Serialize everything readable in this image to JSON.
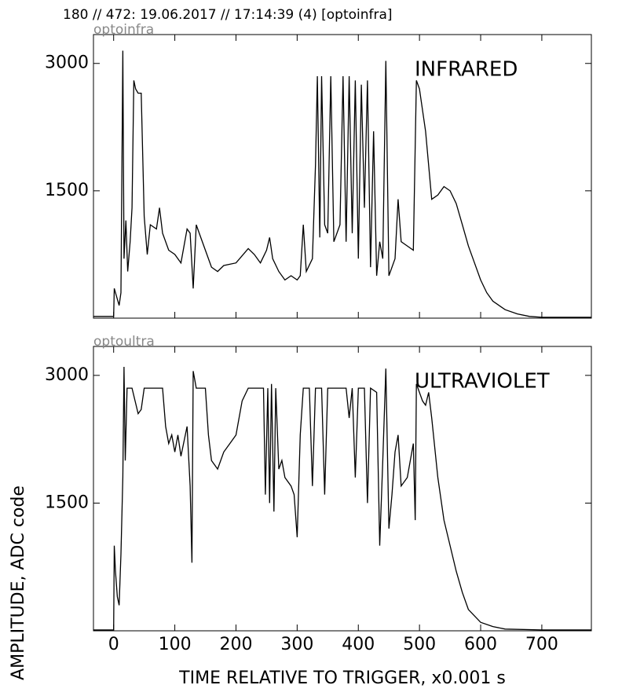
{
  "title": "180 // 472:   19.06.2017 // 17:14:39 (4)  [optoinfra]",
  "xlabel": "TIME RELATIVE TO TRIGGER,   x0.001 s",
  "ylabel": "AMPLITUDE,  ADC code",
  "chart_data": [
    {
      "type": "line",
      "source": "optoinfra",
      "label": "INFRARED",
      "color": "#000000",
      "xlim": [
        -33,
        781
      ],
      "ylim": [
        0,
        3340
      ],
      "xticks": [
        0,
        100,
        200,
        300,
        400,
        500,
        600,
        700
      ],
      "yticks": [
        1500,
        3000
      ],
      "x": [
        -33,
        0,
        1,
        5,
        9,
        12,
        15,
        17,
        20,
        23,
        27,
        30,
        33,
        36,
        40,
        45,
        50,
        55,
        60,
        70,
        75,
        80,
        90,
        100,
        110,
        120,
        125,
        130,
        135,
        140,
        150,
        160,
        170,
        180,
        200,
        220,
        230,
        240,
        250,
        255,
        260,
        270,
        280,
        290,
        300,
        305,
        310,
        315,
        325,
        330,
        333,
        337,
        340,
        345,
        350,
        355,
        360,
        370,
        375,
        380,
        385,
        390,
        395,
        400,
        405,
        410,
        415,
        420,
        425,
        430,
        435,
        440,
        445,
        450,
        460,
        465,
        470,
        480,
        490,
        495,
        500,
        510,
        520,
        530,
        540,
        550,
        560,
        570,
        580,
        590,
        600,
        610,
        620,
        640,
        660,
        680,
        700,
        740,
        781
      ],
      "values": [
        20,
        20,
        350,
        250,
        150,
        300,
        3150,
        700,
        1150,
        550,
        900,
        1300,
        2800,
        2700,
        2650,
        2650,
        1200,
        750,
        1100,
        1050,
        1300,
        1000,
        800,
        750,
        650,
        1050,
        1000,
        350,
        1100,
        1000,
        800,
        600,
        550,
        620,
        650,
        820,
        750,
        650,
        800,
        950,
        700,
        550,
        450,
        500,
        450,
        500,
        1100,
        550,
        700,
        1800,
        2850,
        950,
        2850,
        1100,
        1000,
        2850,
        900,
        1100,
        2850,
        900,
        2850,
        1000,
        2800,
        700,
        2750,
        1300,
        2800,
        600,
        2200,
        500,
        900,
        700,
        3030,
        500,
        700,
        1400,
        900,
        850,
        800,
        2800,
        2700,
        2200,
        1400,
        1450,
        1550,
        1500,
        1350,
        1100,
        850,
        650,
        450,
        300,
        200,
        100,
        50,
        20,
        10,
        10,
        10
      ]
    },
    {
      "type": "line",
      "source": "optoultra",
      "label": "ULTRAVIOLET",
      "color": "#000000",
      "xlim": [
        -33,
        781
      ],
      "ylim": [
        0,
        3340
      ],
      "xticks": [
        0,
        100,
        200,
        300,
        400,
        500,
        600,
        700
      ],
      "yticks": [
        1500,
        3000
      ],
      "x": [
        -33,
        0,
        1,
        3,
        6,
        9,
        12,
        15,
        17,
        19,
        22,
        30,
        35,
        40,
        45,
        50,
        80,
        85,
        90,
        95,
        100,
        105,
        110,
        120,
        125,
        128,
        130,
        135,
        150,
        155,
        160,
        170,
        180,
        190,
        200,
        210,
        220,
        230,
        245,
        248,
        252,
        255,
        258,
        262,
        265,
        270,
        275,
        280,
        290,
        295,
        300,
        305,
        310,
        320,
        325,
        330,
        340,
        345,
        350,
        380,
        385,
        390,
        395,
        400,
        410,
        415,
        420,
        430,
        435,
        440,
        445,
        450,
        455,
        460,
        465,
        470,
        480,
        490,
        493,
        495,
        505,
        510,
        515,
        520,
        530,
        540,
        550,
        560,
        570,
        580,
        600,
        620,
        640,
        700,
        781
      ],
      "values": [
        10,
        10,
        1000,
        700,
        400,
        300,
        900,
        1800,
        3100,
        2000,
        2850,
        2850,
        2700,
        2550,
        2600,
        2850,
        2850,
        2400,
        2200,
        2300,
        2100,
        2300,
        2050,
        2400,
        1700,
        800,
        3050,
        2850,
        2850,
        2300,
        2000,
        1900,
        2100,
        2200,
        2300,
        2700,
        2850,
        2850,
        2850,
        1600,
        2850,
        1500,
        2900,
        1400,
        2850,
        1900,
        2000,
        1800,
        1700,
        1600,
        1100,
        2300,
        2850,
        2850,
        1700,
        2850,
        2850,
        1600,
        2850,
        2850,
        2500,
        2850,
        1800,
        2850,
        2850,
        1500,
        2850,
        2800,
        1000,
        2000,
        3080,
        1200,
        1600,
        2100,
        2300,
        1700,
        1800,
        2200,
        1300,
        2900,
        2700,
        2650,
        2800,
        2500,
        1800,
        1300,
        1000,
        700,
        450,
        250,
        100,
        50,
        20,
        10,
        10
      ]
    }
  ]
}
